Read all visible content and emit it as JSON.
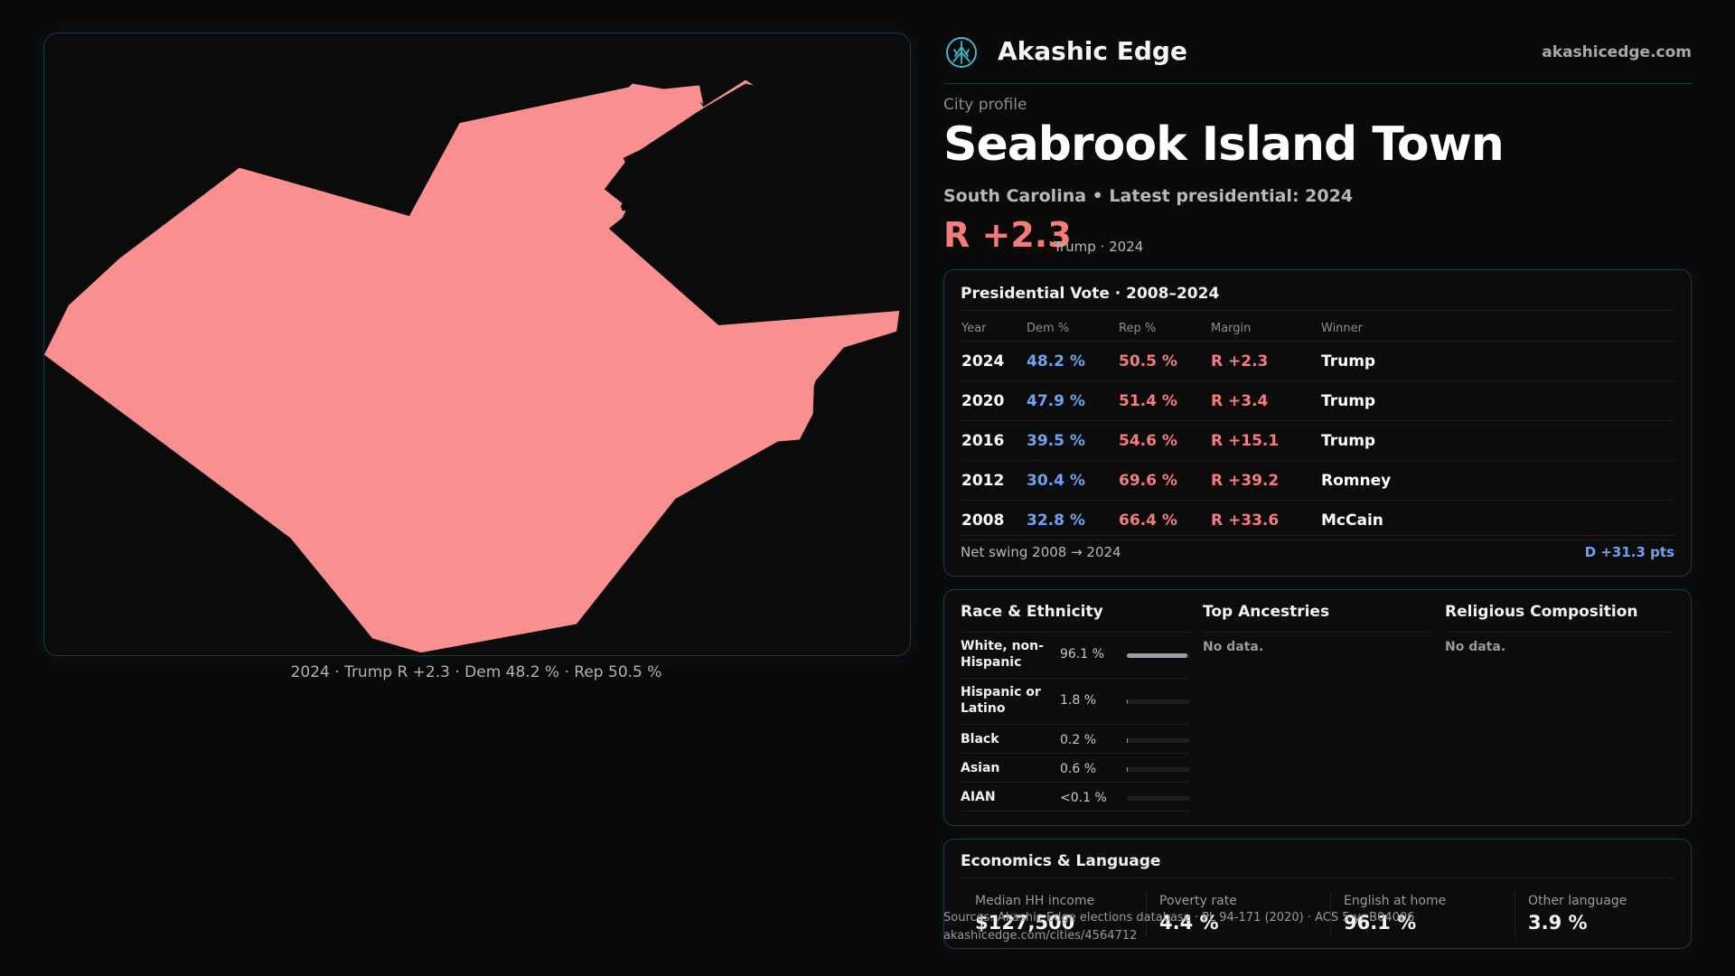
{
  "map": {
    "fill": "#f98f8f",
    "caption": "2024 · Trump R +2.3 · Dem 48.2 % · Rep 50.5 %"
  },
  "header": {
    "brand": "Akashic Edge",
    "site": "akashicedge.com",
    "logo_icon": "tree-icon",
    "accent": "#3fb8c8"
  },
  "profile": {
    "kicker": "City profile",
    "title": "Seabrook Island Town",
    "subtitle": "South Carolina • Latest presidential: 2024",
    "margin": "R +2.3",
    "margin_note": "Trump · 2024"
  },
  "vote": {
    "title": "Presidential Vote · 2008–2024",
    "headers": [
      "Year",
      "Dem %",
      "Rep %",
      "Margin",
      "Winner"
    ],
    "rows": [
      {
        "year": "2024",
        "dem": "48.2 %",
        "rep": "50.5 %",
        "margin": "R +2.3",
        "winner": "Trump"
      },
      {
        "year": "2020",
        "dem": "47.9 %",
        "rep": "51.4 %",
        "margin": "R +3.4",
        "winner": "Trump"
      },
      {
        "year": "2016",
        "dem": "39.5 %",
        "rep": "54.6 %",
        "margin": "R +15.1",
        "winner": "Trump"
      },
      {
        "year": "2012",
        "dem": "30.4 %",
        "rep": "69.6 %",
        "margin": "R +39.2",
        "winner": "Romney"
      },
      {
        "year": "2008",
        "dem": "32.8 %",
        "rep": "66.4 %",
        "margin": "R +33.6",
        "winner": "McCain"
      }
    ],
    "swing_label": "Net swing 2008 → 2024",
    "swing_value": "D +31.3 pts",
    "dem_color": "#6fa3f2",
    "rep_color": "#f47c7c"
  },
  "race": {
    "title": "Race & Ethnicity",
    "rows": [
      {
        "label": "White, non-Hispanic",
        "value": "96.1 %",
        "share": 0.961
      },
      {
        "label": "Hispanic or Latino",
        "value": "1.8 %",
        "share": 0.018
      },
      {
        "label": "Black",
        "value": "0.2 %",
        "share": 0.002
      },
      {
        "label": "Asian",
        "value": "0.6 %",
        "share": 0.006
      },
      {
        "label": "AIAN",
        "value": "<0.1 %",
        "share": 0.0
      }
    ]
  },
  "ancestry": {
    "title": "Top Ancestries",
    "empty": "No data."
  },
  "religion": {
    "title": "Religious Composition",
    "empty": "No data."
  },
  "econ": {
    "title": "Economics & Language",
    "stats": [
      {
        "label": "Median HH income",
        "value": "$127,500"
      },
      {
        "label": "Poverty rate",
        "value": "4.4 %"
      },
      {
        "label": "English at home",
        "value": "96.1 %"
      },
      {
        "label": "Other language",
        "value": "3.9 %"
      }
    ]
  },
  "footer": {
    "sources": "Sources: Akashic Edge elections database · PL 94-171 (2020) · ACS 5-yr B04006",
    "url": "akashicedge.com/cities/4564712"
  }
}
